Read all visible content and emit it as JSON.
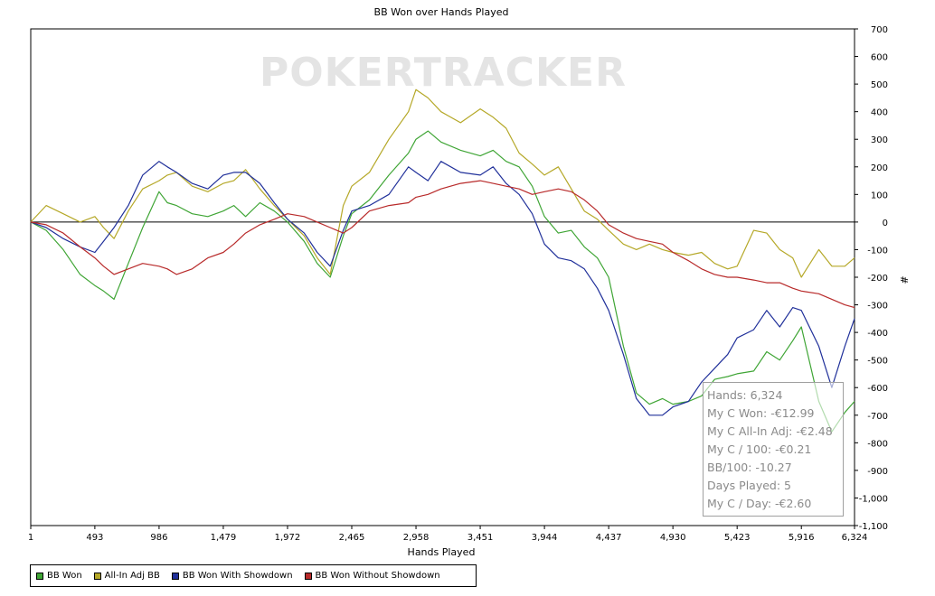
{
  "chart_data": {
    "type": "line",
    "title": "BB Won over Hands Played",
    "xlabel": "Hands Played",
    "ylabel": "#",
    "xlim": [
      1,
      6324
    ],
    "ylim": [
      -1100,
      700
    ],
    "x_ticks": [
      "1",
      "493",
      "986",
      "1,479",
      "1,972",
      "2,465",
      "2,958",
      "3,451",
      "3,944",
      "4,437",
      "4,930",
      "5,423",
      "5,916",
      "6,324"
    ],
    "x_tick_values": [
      1,
      493,
      986,
      1479,
      1972,
      2465,
      2958,
      3451,
      3944,
      4437,
      4930,
      5423,
      5916,
      6324
    ],
    "y_ticks": [
      "700",
      "600",
      "500",
      "400",
      "300",
      "200",
      "100",
      "0",
      "-100",
      "-200",
      "-300",
      "-400",
      "-500",
      "-600",
      "-700",
      "-800",
      "-900",
      "-1,000",
      "-1,100"
    ],
    "y_tick_values": [
      700,
      600,
      500,
      400,
      300,
      200,
      100,
      0,
      -100,
      -200,
      -300,
      -400,
      -500,
      -600,
      -700,
      -800,
      -900,
      -1000,
      -1100
    ],
    "grid": false,
    "legend_position": "bottom",
    "x": [
      1,
      120,
      250,
      380,
      493,
      560,
      640,
      750,
      860,
      986,
      1050,
      1120,
      1240,
      1360,
      1479,
      1560,
      1650,
      1760,
      1870,
      1972,
      2100,
      2200,
      2300,
      2400,
      2465,
      2600,
      2750,
      2900,
      2958,
      3050,
      3150,
      3300,
      3451,
      3550,
      3650,
      3750,
      3850,
      3944,
      4050,
      4150,
      4250,
      4350,
      4437,
      4550,
      4650,
      4750,
      4850,
      4930,
      5050,
      5150,
      5250,
      5350,
      5423,
      5550,
      5650,
      5750,
      5850,
      5916,
      6050,
      6150,
      6250,
      6324
    ],
    "series": [
      {
        "name": "BB Won",
        "color": "#3fa535",
        "values": [
          0,
          -30,
          -100,
          -190,
          -230,
          -250,
          -280,
          -150,
          -20,
          110,
          70,
          60,
          30,
          20,
          40,
          60,
          20,
          70,
          40,
          0,
          -70,
          -150,
          -200,
          -50,
          30,
          80,
          170,
          250,
          300,
          330,
          290,
          260,
          240,
          260,
          220,
          200,
          130,
          20,
          -40,
          -30,
          -90,
          -130,
          -200,
          -450,
          -620,
          -660,
          -640,
          -660,
          -650,
          -630,
          -570,
          -560,
          -550,
          -540,
          -470,
          -500,
          -430,
          -380,
          -650,
          -760,
          -690,
          -650
        ]
      },
      {
        "name": "All-In Adj BB",
        "color": "#b5a828",
        "values": [
          0,
          60,
          30,
          0,
          20,
          -20,
          -60,
          40,
          120,
          150,
          170,
          180,
          130,
          110,
          140,
          150,
          190,
          120,
          60,
          10,
          -50,
          -130,
          -190,
          60,
          130,
          180,
          300,
          400,
          480,
          450,
          400,
          360,
          410,
          380,
          340,
          250,
          210,
          170,
          200,
          120,
          40,
          10,
          -30,
          -80,
          -100,
          -80,
          -100,
          -110,
          -120,
          -110,
          -150,
          -170,
          -160,
          -30,
          -40,
          -100,
          -130,
          -200,
          -100,
          -160,
          -160,
          -130
        ]
      },
      {
        "name": "BB Won With Showdown",
        "color": "#20309a",
        "values": [
          0,
          -20,
          -60,
          -90,
          -110,
          -70,
          -20,
          60,
          170,
          220,
          200,
          180,
          140,
          120,
          170,
          180,
          180,
          140,
          70,
          10,
          -40,
          -110,
          -160,
          -30,
          40,
          60,
          100,
          200,
          180,
          150,
          220,
          180,
          170,
          200,
          140,
          100,
          30,
          -80,
          -130,
          -140,
          -170,
          -240,
          -320,
          -480,
          -640,
          -700,
          -700,
          -670,
          -650,
          -580,
          -530,
          -480,
          -420,
          -390,
          -320,
          -380,
          -310,
          -320,
          -450,
          -600,
          -450,
          -350
        ]
      },
      {
        "name": "BB Won Without Showdown",
        "color": "#b82a2a",
        "values": [
          0,
          -10,
          -40,
          -90,
          -130,
          -160,
          -190,
          -170,
          -150,
          -160,
          -170,
          -190,
          -170,
          -130,
          -110,
          -80,
          -40,
          -10,
          10,
          30,
          20,
          0,
          -20,
          -40,
          -20,
          40,
          60,
          70,
          90,
          100,
          120,
          140,
          150,
          140,
          130,
          120,
          100,
          110,
          120,
          110,
          80,
          40,
          -10,
          -40,
          -60,
          -70,
          -80,
          -110,
          -140,
          -170,
          -190,
          -200,
          -200,
          -210,
          -220,
          -220,
          -240,
          -250,
          -260,
          -280,
          -300,
          -310
        ]
      }
    ]
  },
  "watermark": "POKERTRACKER",
  "stats": {
    "hands": "Hands: 6,324",
    "won": "My C Won: -€12.99",
    "allin": "My C All-In Adj: -€2.48",
    "per100": "My C / 100: -€0.21",
    "bb100": "BB/100: -10.27",
    "days": "Days Played: 5",
    "perday": "My C / Day: -€2.60"
  },
  "legend": [
    {
      "label": "BB Won",
      "color": "#3fa535"
    },
    {
      "label": "All-In Adj BB",
      "color": "#b5a828"
    },
    {
      "label": "BB Won With Showdown",
      "color": "#20309a"
    },
    {
      "label": "BB Won Without Showdown",
      "color": "#b82a2a"
    }
  ]
}
